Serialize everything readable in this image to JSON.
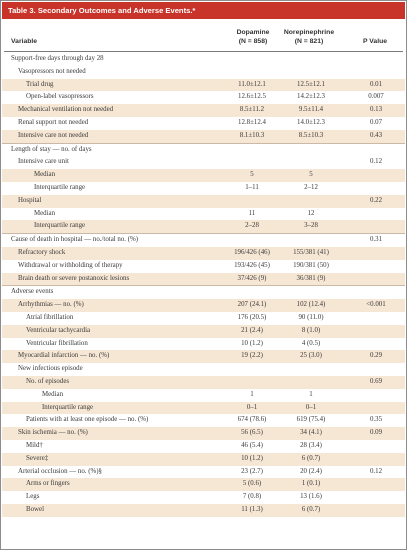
{
  "table": {
    "title": "Table 3. Secondary Outcomes and Adverse Events.*",
    "headers": {
      "variable": "Variable",
      "dopamine": "Dopamine",
      "dopamine_n": "(N = 858)",
      "norepinephrine": "Norepinephrine",
      "norepinephrine_n": "(N = 821)",
      "p_value": "P Value"
    },
    "rows": [
      {
        "label": "Support-free days through day 28",
        "indent": 0,
        "dopamine": "",
        "norepinephrine": "",
        "p": "",
        "shade": false,
        "sep": false
      },
      {
        "label": "Vasopressors not needed",
        "indent": 1,
        "dopamine": "",
        "norepinephrine": "",
        "p": "",
        "shade": false,
        "sep": false
      },
      {
        "label": "Trial drug",
        "indent": 2,
        "dopamine": "11.0±12.1",
        "norepinephrine": "12.5±12.1",
        "p": "0.01",
        "shade": true,
        "sep": false
      },
      {
        "label": "Open-label vasopressors",
        "indent": 2,
        "dopamine": "12.6±12.5",
        "norepinephrine": "14.2±12.3",
        "p": "0.007",
        "shade": false,
        "sep": false
      },
      {
        "label": "Mechanical ventilation not needed",
        "indent": 1,
        "dopamine": "8.5±11.2",
        "norepinephrine": "9.5±11.4",
        "p": "0.13",
        "shade": true,
        "sep": false
      },
      {
        "label": "Renal support not needed",
        "indent": 1,
        "dopamine": "12.8±12.4",
        "norepinephrine": "14.0±12.3",
        "p": "0.07",
        "shade": false,
        "sep": false
      },
      {
        "label": "Intensive care not needed",
        "indent": 1,
        "dopamine": "8.1±10.3",
        "norepinephrine": "8.5±10.3",
        "p": "0.43",
        "shade": true,
        "sep": false
      },
      {
        "label": "Length of stay — no. of days",
        "indent": 0,
        "dopamine": "",
        "norepinephrine": "",
        "p": "",
        "shade": false,
        "sep": true
      },
      {
        "label": "Intensive care unit",
        "indent": 1,
        "dopamine": "",
        "norepinephrine": "",
        "p": "0.12",
        "shade": false,
        "sep": false
      },
      {
        "label": "Median",
        "indent": 3,
        "dopamine": "5",
        "norepinephrine": "5",
        "p": "",
        "shade": true,
        "sep": false
      },
      {
        "label": "Interquartile range",
        "indent": 3,
        "dopamine": "1–11",
        "norepinephrine": "2–12",
        "p": "",
        "shade": false,
        "sep": false
      },
      {
        "label": "Hospital",
        "indent": 1,
        "dopamine": "",
        "norepinephrine": "",
        "p": "0.22",
        "shade": true,
        "sep": false
      },
      {
        "label": "Median",
        "indent": 3,
        "dopamine": "11",
        "norepinephrine": "12",
        "p": "",
        "shade": false,
        "sep": false
      },
      {
        "label": "Interquartile range",
        "indent": 3,
        "dopamine": "2–28",
        "norepinephrine": "3–28",
        "p": "",
        "shade": true,
        "sep": false
      },
      {
        "label": "Cause of death in hospital — no./total no. (%)",
        "indent": 0,
        "dopamine": "",
        "norepinephrine": "",
        "p": "0.31",
        "shade": false,
        "sep": true
      },
      {
        "label": "Refractory shock",
        "indent": 1,
        "dopamine": "196/426 (46)",
        "norepinephrine": "155/381 (41)",
        "p": "",
        "shade": true,
        "sep": false
      },
      {
        "label": "Withdrawal or withholding of therapy",
        "indent": 1,
        "dopamine": "193/426 (45)",
        "norepinephrine": "190/381 (50)",
        "p": "",
        "shade": false,
        "sep": false
      },
      {
        "label": "Brain death or severe postanoxic lesions",
        "indent": 1,
        "dopamine": "37/426 (9)",
        "norepinephrine": "36/381 (9)",
        "p": "",
        "shade": true,
        "sep": false
      },
      {
        "label": "Adverse events",
        "indent": 0,
        "dopamine": "",
        "norepinephrine": "",
        "p": "",
        "shade": false,
        "sep": true
      },
      {
        "label": "Arrhythmias — no. (%)",
        "indent": 1,
        "dopamine": "207 (24.1)",
        "norepinephrine": "102 (12.4)",
        "p": "<0.001",
        "shade": true,
        "sep": false
      },
      {
        "label": "Atrial fibrillation",
        "indent": 2,
        "dopamine": "176 (20.5)",
        "norepinephrine": "90 (11.0)",
        "p": "",
        "shade": false,
        "sep": false
      },
      {
        "label": "Ventricular tachycardia",
        "indent": 2,
        "dopamine": "21 (2.4)",
        "norepinephrine": "8 (1.0)",
        "p": "",
        "shade": true,
        "sep": false
      },
      {
        "label": "Ventricular fibrillation",
        "indent": 2,
        "dopamine": "10 (1.2)",
        "norepinephrine": "4 (0.5)",
        "p": "",
        "shade": false,
        "sep": false
      },
      {
        "label": "Myocardial infarction — no. (%)",
        "indent": 1,
        "dopamine": "19 (2.2)",
        "norepinephrine": "25 (3.0)",
        "p": "0.29",
        "shade": true,
        "sep": false
      },
      {
        "label": "New infectious episode",
        "indent": 1,
        "dopamine": "",
        "norepinephrine": "",
        "p": "",
        "shade": false,
        "sep": false
      },
      {
        "label": "No. of episodes",
        "indent": 2,
        "dopamine": "",
        "norepinephrine": "",
        "p": "0.69",
        "shade": true,
        "sep": false
      },
      {
        "label": "Median",
        "indent": 4,
        "dopamine": "1",
        "norepinephrine": "1",
        "p": "",
        "shade": false,
        "sep": false
      },
      {
        "label": "Interquartile range",
        "indent": 4,
        "dopamine": "0–1",
        "norepinephrine": "0–1",
        "p": "",
        "shade": true,
        "sep": false
      },
      {
        "label": "Patients with at least one episode — no. (%)",
        "indent": 2,
        "dopamine": "674 (78.6)",
        "norepinephrine": "619 (75.4)",
        "p": "0.35",
        "shade": false,
        "sep": false
      },
      {
        "label": "Skin ischemia — no. (%)",
        "indent": 1,
        "dopamine": "56 (6.5)",
        "norepinephrine": "34 (4.1)",
        "p": "0.09",
        "shade": true,
        "sep": false
      },
      {
        "label": "Mild†",
        "indent": 2,
        "dopamine": "46 (5.4)",
        "norepinephrine": "28 (3.4)",
        "p": "",
        "shade": false,
        "sep": false
      },
      {
        "label": "Severe‡",
        "indent": 2,
        "dopamine": "10 (1.2)",
        "norepinephrine": "6 (0.7)",
        "p": "",
        "shade": true,
        "sep": false
      },
      {
        "label": "Arterial occlusion — no. (%)§",
        "indent": 1,
        "dopamine": "23 (2.7)",
        "norepinephrine": "20 (2.4)",
        "p": "0.12",
        "shade": false,
        "sep": false
      },
      {
        "label": "Arms or fingers",
        "indent": 2,
        "dopamine": "5 (0.6)",
        "norepinephrine": "1 (0.1)",
        "p": "",
        "shade": true,
        "sep": false
      },
      {
        "label": "Legs",
        "indent": 2,
        "dopamine": "7 (0.8)",
        "norepinephrine": "13 (1.6)",
        "p": "",
        "shade": false,
        "sep": false
      },
      {
        "label": "Bowel",
        "indent": 2,
        "dopamine": "11 (1.3)",
        "norepinephrine": "6 (0.7)",
        "p": "",
        "shade": true,
        "sep": false
      }
    ]
  }
}
